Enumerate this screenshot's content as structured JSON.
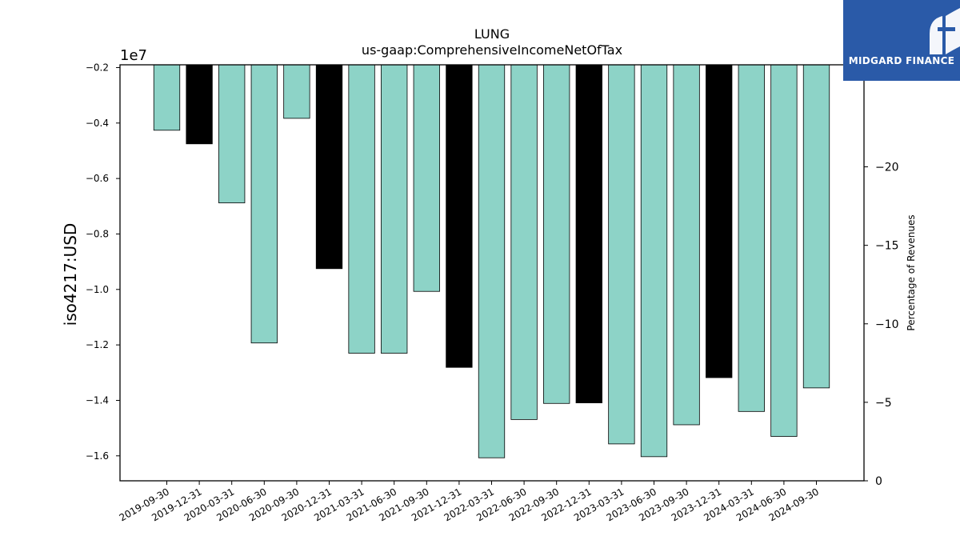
{
  "chart_data": {
    "type": "bar",
    "title": "LUNG",
    "subtitle": "us-gaap:ComprehensiveIncomeNetOfTax",
    "ylabel": "iso4217:USD",
    "y_offset_label": "1e7",
    "y2label": "Percentage of Revenues",
    "ylim": [
      -1.69,
      -0.19
    ],
    "y_scale": 10000000,
    "y2lim": [
      0,
      26.5
    ],
    "y2_ticks": [
      -20,
      -15,
      -10,
      -5,
      0
    ],
    "y_ticks": [
      -0.2,
      -0.4,
      -0.6,
      -0.8,
      -1.0,
      -1.2,
      -1.4,
      -1.6
    ],
    "grid": false,
    "categories": [
      "2019-09-30",
      "2019-12-31",
      "2020-03-31",
      "2020-06-30",
      "2020-09-30",
      "2020-12-31",
      "2021-03-31",
      "2021-06-30",
      "2021-09-30",
      "2021-12-31",
      "2022-03-31",
      "2022-06-30",
      "2022-09-30",
      "2022-12-31",
      "2023-03-31",
      "2023-06-30",
      "2023-09-30",
      "2023-12-31",
      "2024-03-31",
      "2024-06-30",
      "2024-09-30"
    ],
    "values": [
      -4260000,
      -4750000,
      -6880000,
      -11930000,
      -3830000,
      -9250000,
      -12300000,
      -12300000,
      -10070000,
      -12810000,
      -16070000,
      -14690000,
      -14110000,
      -14090000,
      -15570000,
      -16030000,
      -14880000,
      -13180000,
      -14400000,
      -15300000,
      -13550000
    ],
    "bar_colors": [
      "#8dd3c7",
      "#000000",
      "#8dd3c7",
      "#8dd3c7",
      "#8dd3c7",
      "#000000",
      "#8dd3c7",
      "#8dd3c7",
      "#8dd3c7",
      "#000000",
      "#8dd3c7",
      "#8dd3c7",
      "#8dd3c7",
      "#000000",
      "#8dd3c7",
      "#8dd3c7",
      "#8dd3c7",
      "#000000",
      "#8dd3c7",
      "#8dd3c7",
      "#8dd3c7"
    ],
    "colors": {
      "quarter": "#8dd3c7",
      "year_end": "#000000"
    }
  },
  "logo": {
    "text": "MIDGARD FINANCE",
    "background": "#2a5aa8"
  }
}
